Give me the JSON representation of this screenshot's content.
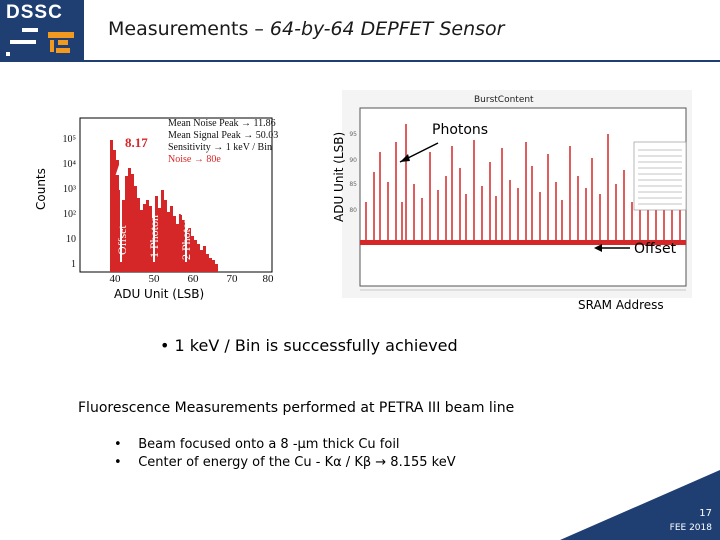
{
  "logo": {
    "text": "DSSC"
  },
  "title": {
    "main": "Measurements – ",
    "italic": "64-by-64 DEPFET Sensor"
  },
  "histogram": {
    "ylabel": "Counts",
    "xlabel": "ADU Unit (LSB)",
    "legend": [
      "Mean Noise Peak → 11.86",
      "Mean Signal Peak → 50.03",
      "Sensitivity → 1 keV / Bin",
      "Noise → 80e"
    ],
    "callout": "8.17",
    "peak_labels": [
      "Offset",
      "1 Photon",
      "2 Photons"
    ],
    "ytick_labels": [
      "10⁵",
      "10⁴",
      "10³",
      "10²",
      "10",
      "1"
    ],
    "xtick_labels": [
      "40",
      "50",
      "60",
      "70",
      "80"
    ]
  },
  "burst": {
    "title": "BurstContent",
    "ylabel": "ADU Unit (LSB)",
    "xlabel": "SRAM Address",
    "photons_label": "Photons",
    "offset_label": "Offset",
    "ytick_labels": [
      "95",
      "90",
      "85",
      "80"
    ]
  },
  "bullet": "•  1 keV / Bin is successfully achieved",
  "subhead": "Fluorescence Measurements performed at PETRA III beam line",
  "sub_items": [
    "Beam focused onto a 8 -μm thick Cu foil",
    "Center of energy of the Cu - Kα / Kβ  → 8.155 keV"
  ],
  "footer": {
    "page": "17",
    "text": "FEE 2018"
  }
}
